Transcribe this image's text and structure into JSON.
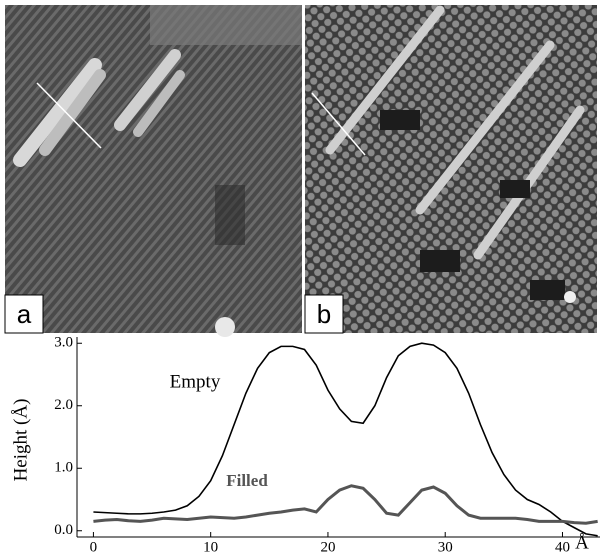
{
  "images": [
    {
      "label": "a"
    },
    {
      "label": "b"
    }
  ],
  "chart_data": {
    "type": "line",
    "y_label": "Height (Å)",
    "x_unit": "Å",
    "x": [
      0,
      1,
      2,
      3,
      4,
      5,
      6,
      7,
      8,
      9,
      10,
      11,
      12,
      13,
      14,
      15,
      16,
      17,
      18,
      19,
      20,
      21,
      22,
      23,
      24,
      25,
      26,
      27,
      28,
      29,
      30,
      31,
      32,
      33,
      34,
      35,
      36,
      37,
      38,
      39,
      40,
      41,
      42,
      43
    ],
    "series": [
      {
        "name": "Empty",
        "color": "#000000",
        "width": 1.6,
        "values": [
          0.3,
          0.29,
          0.28,
          0.27,
          0.27,
          0.28,
          0.3,
          0.33,
          0.4,
          0.55,
          0.8,
          1.2,
          1.7,
          2.2,
          2.6,
          2.85,
          2.95,
          2.95,
          2.9,
          2.65,
          2.25,
          1.95,
          1.75,
          1.72,
          2.0,
          2.45,
          2.8,
          2.95,
          3.0,
          2.97,
          2.85,
          2.6,
          2.2,
          1.7,
          1.25,
          0.9,
          0.65,
          0.5,
          0.42,
          0.3,
          0.15,
          0.05,
          -0.05,
          -0.08
        ]
      },
      {
        "name": "Filled",
        "color": "#555555",
        "width": 3,
        "values": [
          0.15,
          0.17,
          0.18,
          0.16,
          0.15,
          0.17,
          0.2,
          0.19,
          0.18,
          0.2,
          0.22,
          0.21,
          0.2,
          0.22,
          0.25,
          0.28,
          0.3,
          0.33,
          0.35,
          0.3,
          0.5,
          0.65,
          0.72,
          0.68,
          0.5,
          0.28,
          0.25,
          0.45,
          0.65,
          0.7,
          0.6,
          0.4,
          0.25,
          0.2,
          0.2,
          0.2,
          0.2,
          0.18,
          0.15,
          0.15,
          0.15,
          0.13,
          0.12,
          0.15
        ]
      }
    ],
    "xlim": [
      -1.4,
      43.2
    ],
    "xticks": [
      0,
      10,
      20,
      30,
      40
    ],
    "ylim": [
      -0.1,
      3.1
    ],
    "yticks": [
      {
        "value": 0,
        "label": "0.0"
      },
      {
        "value": 1,
        "label": "1.0"
      },
      {
        "value": 2,
        "label": "2.0"
      },
      {
        "value": 3,
        "label": "3.0"
      }
    ]
  }
}
